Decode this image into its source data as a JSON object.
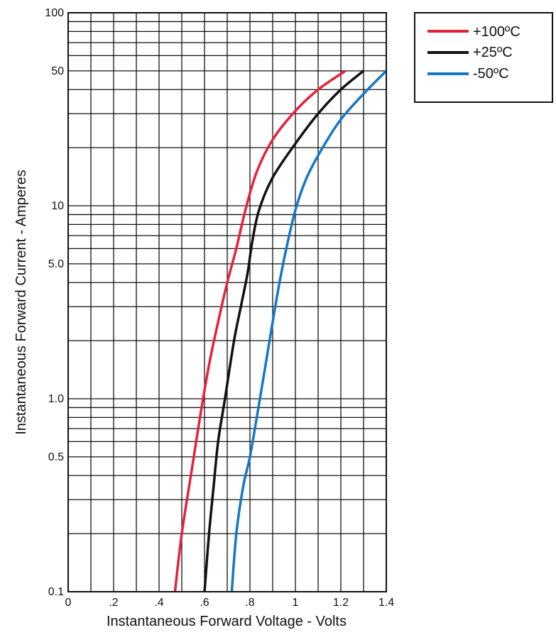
{
  "chart_data": {
    "type": "line",
    "xlabel": "Instantaneous Forward Voltage - Volts",
    "ylabel": "Instantaneous Forward Current - Amperes",
    "xlim": [
      0,
      1.4
    ],
    "ylim": [
      0.1,
      100
    ],
    "y_scale": "log",
    "grid": true,
    "legend_position": "top-right, outside plot",
    "x_ticks": [
      {
        "value": 0,
        "label": "0"
      },
      {
        "value": 0.2,
        "label": ".2"
      },
      {
        "value": 0.4,
        "label": ".4"
      },
      {
        "value": 0.6,
        "label": ".6"
      },
      {
        "value": 0.8,
        "label": ".8"
      },
      {
        "value": 1.0,
        "label": "1"
      },
      {
        "value": 1.2,
        "label": "1.2"
      },
      {
        "value": 1.4,
        "label": "1.4"
      }
    ],
    "y_ticks": [
      {
        "value": 0.1,
        "label": "0.1"
      },
      {
        "value": 0.5,
        "label": "0.5"
      },
      {
        "value": 1,
        "label": "1.0"
      },
      {
        "value": 5,
        "label": "5.0"
      },
      {
        "value": 10,
        "label": "10"
      },
      {
        "value": 50,
        "label": "50"
      },
      {
        "value": 100,
        "label": "100"
      }
    ],
    "series": [
      {
        "name": "+100ºC",
        "color": "#e8213a",
        "points": [
          [
            0.47,
            0.1
          ],
          [
            0.5,
            0.2
          ],
          [
            0.54,
            0.4
          ],
          [
            0.58,
            0.8
          ],
          [
            0.62,
            1.5
          ],
          [
            0.66,
            2.5
          ],
          [
            0.7,
            4.0
          ],
          [
            0.74,
            6.0
          ],
          [
            0.78,
            9.5
          ],
          [
            0.83,
            15
          ],
          [
            0.9,
            22
          ],
          [
            1.0,
            31
          ],
          [
            1.1,
            40
          ],
          [
            1.22,
            50
          ]
        ]
      },
      {
        "name": "+25ºC",
        "color": "#111111",
        "points": [
          [
            0.6,
            0.1
          ],
          [
            0.62,
            0.2
          ],
          [
            0.64,
            0.35
          ],
          [
            0.66,
            0.6
          ],
          [
            0.69,
            1.0
          ],
          [
            0.73,
            2.0
          ],
          [
            0.76,
            3.0
          ],
          [
            0.79,
            4.5
          ],
          [
            0.81,
            6.5
          ],
          [
            0.84,
            9.5
          ],
          [
            0.9,
            14
          ],
          [
            1.0,
            21
          ],
          [
            1.1,
            30
          ],
          [
            1.2,
            40
          ],
          [
            1.3,
            50
          ]
        ]
      },
      {
        "name": "-50ºC",
        "color": "#1478c8",
        "points": [
          [
            0.72,
            0.1
          ],
          [
            0.74,
            0.2
          ],
          [
            0.77,
            0.35
          ],
          [
            0.8,
            0.5
          ],
          [
            0.83,
            0.8
          ],
          [
            0.86,
            1.3
          ],
          [
            0.9,
            2.5
          ],
          [
            0.93,
            4.0
          ],
          [
            0.96,
            6.0
          ],
          [
            1.0,
            9.5
          ],
          [
            1.05,
            14
          ],
          [
            1.12,
            20
          ],
          [
            1.2,
            28
          ],
          [
            1.3,
            38
          ],
          [
            1.4,
            50
          ]
        ]
      }
    ]
  }
}
